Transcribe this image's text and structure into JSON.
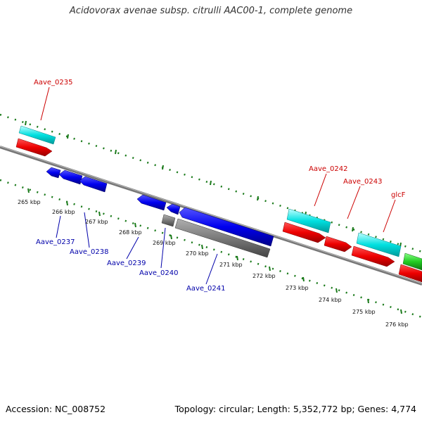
{
  "title": "Acidovorax avenae subsp. citrulli AAC00-1, complete genome",
  "footer": {
    "accession": "Accession: NC_008752",
    "summary": "Topology: circular; Length: 5,352,772 bp; Genes: 4,774"
  },
  "colors": {
    "background": "#ffffff",
    "backbone": "#808080",
    "tick_ring": "#1a7a1a",
    "forward_cds": "#ff0000",
    "forward_gene": "#00e5e5",
    "reverse_cds": "#0000ff",
    "reverse_gray": "#808080",
    "rna": "#33cc33",
    "label_forward": "#cc0000",
    "label_reverse": "#0000aa"
  },
  "scale_labels": [
    "265 kbp",
    "266 kbp",
    "267 kbp",
    "268 kbp",
    "269 kbp",
    "270 kbp",
    "271 kbp",
    "272 kbp",
    "273 kbp",
    "274 kbp",
    "275 kbp",
    "276 kbp"
  ],
  "gene_labels_forward": [
    "Aave_0235",
    "Aave_0242",
    "Aave_0243",
    "glcF"
  ],
  "gene_labels_reverse": [
    "Aave_0237",
    "Aave_0238",
    "Aave_0239",
    "Aave_0240",
    "Aave_0241"
  ]
}
